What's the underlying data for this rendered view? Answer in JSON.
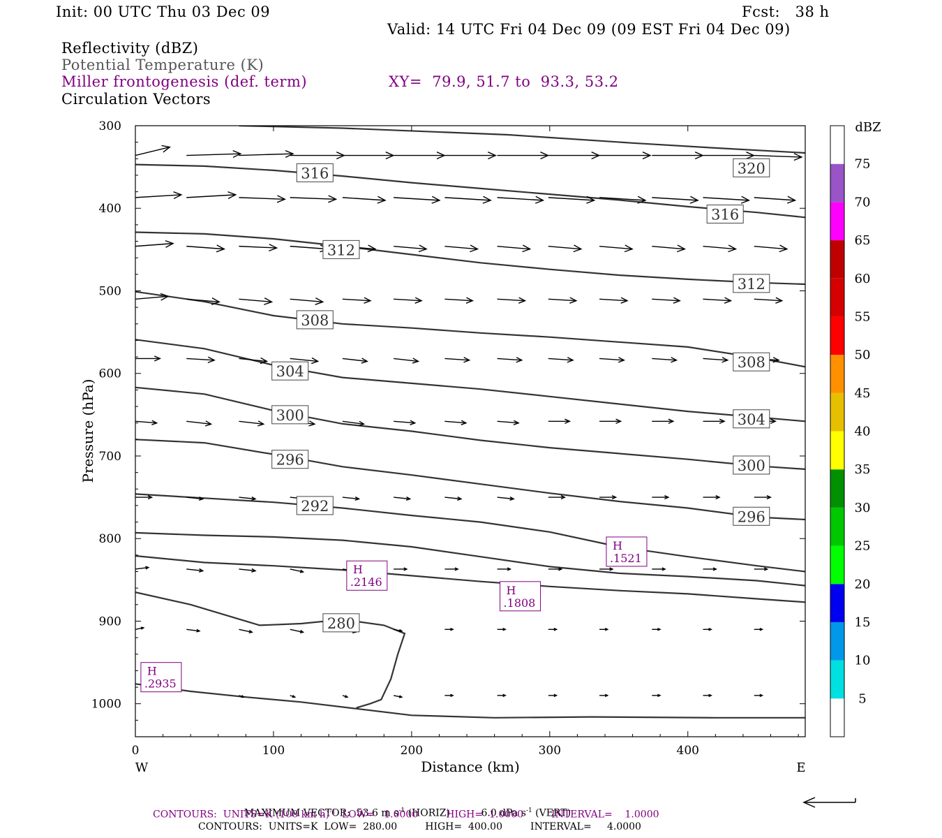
{
  "header": {
    "init": "Init: 00 UTC Thu 03 Dec 09",
    "fcst": "Fcst:   38 h",
    "valid": "Valid: 14 UTC Fri 04 Dec 09 (09 EST Fri 04 Dec 09)",
    "field1": "Reflectivity (dBZ)",
    "field2": "Potential Temperature (K)",
    "field3": "Miller frontogenesis (def. term)",
    "xy": "XY=  79.9, 51.7 to  93.3, 53.2",
    "field4": "Circulation Vectors"
  },
  "footer": {
    "max_vector_label": "MAXIMUM VECTOR:",
    "max_vector_horiz": "53.6 m s",
    "horiz_unit": " (HORIZ)",
    "max_vector_vert": "6.0 dPa s",
    "vert_unit": " (VERT)",
    "exp_neg1": "-1",
    "contours1_prefix": "CONTOURS:  UNITS=K (100 km h)",
    "contours1_suffix": "  LOW=   1.0000         HIGH=  1.0000         INTERVAL=    1.0000",
    "contours2": "CONTOURS:  UNITS=K  LOW=  280.00         HIGH=  400.00         INTERVAL=     4.0000"
  },
  "colors": {
    "axis": "#000000",
    "theta": "#333333",
    "frontogenesis": "#800080",
    "dbz_scale": [
      "#ffffff",
      "#00e0e0",
      "#0098e8",
      "#0000f0",
      "#00ff00",
      "#00c800",
      "#009000",
      "#ffff00",
      "#e6c000",
      "#ff9000",
      "#ff0000",
      "#d60000",
      "#c00000",
      "#ff00ff",
      "#9955c8",
      "#ffffff"
    ]
  },
  "chart_data": {
    "type": "line",
    "xlabel": "Distance (km)",
    "ylabel": "Pressure (hPa)",
    "x_ticks": [
      0,
      100,
      200,
      300,
      400
    ],
    "y_ticks": [
      300,
      400,
      500,
      600,
      700,
      800,
      900,
      1000
    ],
    "xlim": [
      0,
      485
    ],
    "ylim": [
      300,
      1040
    ],
    "y_reversed": true,
    "x_end_labels": [
      "W",
      "E"
    ],
    "colorbar": {
      "unit": "dBZ",
      "ticks": [
        5,
        10,
        15,
        20,
        25,
        30,
        35,
        40,
        45,
        50,
        55,
        60,
        65,
        70,
        75
      ],
      "range": [
        0,
        80
      ]
    },
    "theta_contours": [
      {
        "value": "320",
        "x": [
          75,
          150,
          270,
          360,
          420,
          485
        ],
        "y": [
          300,
          303,
          311,
          321,
          327,
          333
        ],
        "label_at": [
          446,
          351
        ]
      },
      {
        "value": "316",
        "x": [
          0,
          50,
          100,
          150,
          200,
          250,
          300,
          350,
          400,
          450,
          485
        ],
        "y": [
          347,
          349,
          354,
          361,
          369,
          376,
          383,
          390,
          398,
          405,
          411
        ],
        "label_at": [
          130,
          357
        ]
      },
      {
        "value": "316",
        "x": [
          0
        ],
        "y": [
          347
        ],
        "label_at": [
          427,
          407
        ]
      },
      {
        "value": "312",
        "x": [
          0,
          50,
          100,
          150,
          200,
          250,
          300,
          350,
          400,
          450,
          485
        ],
        "y": [
          429,
          431,
          437,
          446,
          456,
          466,
          474,
          481,
          486,
          490,
          492
        ],
        "label_at": [
          149,
          450
        ]
      },
      {
        "value": "312",
        "x": [
          0
        ],
        "y": [
          429
        ],
        "label_at": [
          446,
          491
        ]
      },
      {
        "value": "308",
        "x": [
          0,
          50,
          100,
          150,
          200,
          250,
          300,
          350,
          400,
          450,
          485
        ],
        "y": [
          501,
          513,
          530,
          540,
          545,
          551,
          556,
          562,
          568,
          581,
          592
        ],
        "label_at": [
          130,
          535
        ]
      },
      {
        "value": "308",
        "x": [
          0
        ],
        "y": [
          501
        ],
        "label_at": [
          446,
          586
        ]
      },
      {
        "value": "304",
        "x": [
          0,
          50,
          100,
          150,
          200,
          250,
          300,
          350,
          400,
          450,
          485
        ],
        "y": [
          559,
          570,
          590,
          605,
          612,
          619,
          628,
          637,
          646,
          653,
          658
        ],
        "label_at": [
          112,
          597
        ]
      },
      {
        "value": "304",
        "x": [
          0
        ],
        "y": [
          559
        ],
        "label_at": [
          446,
          655
        ]
      },
      {
        "value": "300",
        "x": [
          0,
          50,
          100,
          150,
          200,
          250,
          300,
          350,
          400,
          450,
          485
        ],
        "y": [
          617,
          625,
          645,
          661,
          670,
          681,
          690,
          697,
          704,
          712,
          716
        ],
        "label_at": [
          112,
          650
        ]
      },
      {
        "value": "300",
        "x": [
          0
        ],
        "y": [
          617
        ],
        "label_at": [
          446,
          711
        ]
      },
      {
        "value": "296",
        "x": [
          0,
          50,
          100,
          150,
          200,
          250,
          300,
          350,
          400,
          450,
          485
        ],
        "y": [
          680,
          684,
          698,
          713,
          723,
          734,
          745,
          755,
          763,
          774,
          777
        ],
        "label_at": [
          112,
          704
        ]
      },
      {
        "value": "296",
        "x": [
          0
        ],
        "y": [
          680
        ],
        "label_at": [
          446,
          773
        ]
      },
      {
        "value": "292",
        "x": [
          0,
          50,
          100,
          150,
          200,
          250,
          300,
          350,
          400,
          450,
          485
        ],
        "y": [
          746,
          751,
          756,
          763,
          772,
          780,
          792,
          810,
          822,
          833,
          840
        ],
        "label_at": [
          130,
          760
        ]
      },
      {
        "value": "288",
        "x": [
          0,
          50,
          100,
          150,
          200,
          250,
          300,
          350,
          400,
          450,
          485
        ],
        "y": [
          793,
          796,
          798,
          802,
          810,
          822,
          834,
          842,
          846,
          851,
          857
        ]
      },
      {
        "value": "284",
        "x": [
          0,
          50,
          100,
          150,
          200,
          250,
          300,
          350,
          400,
          450,
          485
        ],
        "y": [
          821,
          829,
          833,
          838,
          845,
          852,
          858,
          863,
          867,
          873,
          877
        ]
      },
      {
        "value": "280",
        "x": [
          0,
          40,
          90,
          120,
          150,
          180,
          195,
          190,
          185,
          178,
          170,
          160
        ],
        "y": [
          865,
          880,
          905,
          903,
          898,
          905,
          915,
          940,
          970,
          995,
          1000,
          1005
        ],
        "label_at": [
          149,
          902
        ]
      },
      {
        "value": "276",
        "x": [
          0,
          40,
          80,
          120,
          160,
          200,
          260,
          330,
          420,
          485
        ],
        "y": [
          976,
          985,
          992,
          998,
          1006,
          1014,
          1017,
          1016,
          1017,
          1017
        ]
      }
    ],
    "frontogenesis_highs": [
      {
        "label": "H",
        "value": ".2935",
        "x": 4,
        "y": 967
      },
      {
        "label": "H",
        "value": ".2146",
        "x": 153,
        "y": 844
      },
      {
        "label": "H",
        "value": ".1808",
        "x": 264,
        "y": 869
      },
      {
        "label": "H",
        "value": ".1521",
        "x": 341,
        "y": 815
      }
    ],
    "vector_rows": [
      {
        "p": 336,
        "x": [
          0,
          37,
          75,
          112,
          150,
          187,
          224,
          262,
          299,
          336,
          374,
          411,
          448
        ],
        "u": [
          21,
          33,
          33,
          33,
          31,
          31,
          31,
          31,
          31,
          31,
          31,
          31,
          29
        ],
        "w": [
          -15,
          -3,
          -3,
          0,
          0,
          0,
          0,
          0,
          0,
          0,
          0,
          0,
          3
        ]
      },
      {
        "p": 387,
        "x": [
          0,
          37,
          75,
          112,
          150,
          187,
          224,
          262,
          299,
          336,
          374,
          411,
          448
        ],
        "u": [
          28,
          30,
          28,
          28,
          26,
          28,
          28,
          28,
          28,
          28,
          28,
          28,
          25
        ],
        "w": [
          -5,
          -5,
          3,
          3,
          5,
          5,
          5,
          5,
          5,
          5,
          5,
          5,
          5
        ]
      },
      {
        "p": 446,
        "x": [
          0,
          37,
          75,
          112,
          150,
          187,
          224,
          262,
          299,
          336,
          374,
          411,
          448
        ],
        "u": [
          23,
          23,
          23,
          23,
          20,
          20,
          20,
          20,
          20,
          20,
          20,
          20,
          20
        ],
        "w": [
          -5,
          5,
          3,
          5,
          5,
          5,
          5,
          5,
          5,
          5,
          5,
          5,
          5
        ]
      },
      {
        "p": 510,
        "x": [
          0,
          37,
          75,
          112,
          150,
          187,
          224,
          262,
          299,
          336,
          374,
          411,
          448
        ],
        "u": [
          20,
          20,
          20,
          20,
          17,
          17,
          17,
          17,
          17,
          17,
          17,
          17,
          17
        ],
        "w": [
          -5,
          5,
          5,
          5,
          3,
          3,
          3,
          3,
          3,
          3,
          3,
          3,
          3
        ]
      },
      {
        "p": 582,
        "x": [
          0,
          37,
          75,
          112,
          150,
          187,
          224,
          262,
          299,
          336,
          374,
          411,
          448
        ],
        "u": [
          15,
          17,
          17,
          17,
          15,
          15,
          15,
          15,
          15,
          15,
          15,
          15,
          15
        ],
        "w": [
          0,
          3,
          5,
          5,
          5,
          5,
          3,
          3,
          3,
          3,
          3,
          3,
          3
        ]
      },
      {
        "p": 658,
        "x": [
          0,
          37,
          75,
          112,
          150,
          187,
          224,
          262,
          299,
          336,
          374,
          411,
          448
        ],
        "u": [
          13,
          15,
          15,
          15,
          13,
          13,
          13,
          13,
          13,
          13,
          13,
          13,
          13
        ],
        "w": [
          3,
          5,
          5,
          5,
          5,
          3,
          3,
          3,
          0,
          0,
          0,
          0,
          0
        ]
      },
      {
        "p": 750,
        "x": [
          0,
          37,
          75,
          112,
          150,
          187,
          224,
          262,
          299,
          336,
          374,
          411,
          448
        ],
        "u": [
          10,
          10,
          10,
          10,
          10,
          10,
          10,
          10,
          10,
          10,
          10,
          10,
          10
        ],
        "w": [
          0,
          3,
          3,
          3,
          3,
          3,
          3,
          3,
          0,
          0,
          0,
          0,
          0
        ]
      },
      {
        "p": 837,
        "x": [
          0,
          37,
          75,
          112,
          150,
          187,
          224,
          262,
          299,
          336,
          374,
          411,
          448
        ],
        "u": [
          8,
          10,
          10,
          8,
          8,
          8,
          8,
          8,
          8,
          8,
          8,
          8,
          8
        ],
        "w": [
          -3,
          3,
          3,
          5,
          3,
          0,
          0,
          0,
          0,
          0,
          0,
          0,
          0
        ]
      },
      {
        "p": 910,
        "x": [
          0,
          37,
          75,
          112,
          150,
          187,
          224,
          262,
          299,
          336,
          374,
          411,
          448
        ],
        "u": [
          5,
          8,
          8,
          8,
          8,
          5,
          5,
          5,
          5,
          5,
          5,
          5,
          5
        ],
        "w": [
          -3,
          3,
          5,
          5,
          5,
          3,
          0,
          0,
          0,
          0,
          0,
          0,
          0
        ]
      },
      {
        "p": 990,
        "x": [
          75,
          112,
          150,
          187,
          224,
          262,
          299,
          336,
          374,
          411,
          448
        ],
        "u": [
          3,
          3,
          3,
          5,
          5,
          5,
          5,
          5,
          5,
          5,
          5
        ],
        "w": [
          3,
          3,
          3,
          3,
          0,
          0,
          0,
          0,
          0,
          0,
          0
        ]
      }
    ]
  }
}
